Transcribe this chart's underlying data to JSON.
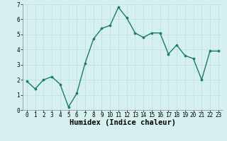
{
  "xlabel": "Humidex (Indice chaleur)",
  "x": [
    0,
    1,
    2,
    3,
    4,
    5,
    6,
    7,
    8,
    9,
    10,
    11,
    12,
    13,
    14,
    15,
    16,
    17,
    18,
    19,
    20,
    21,
    22,
    23
  ],
  "y": [
    1.9,
    1.4,
    2.0,
    2.2,
    1.7,
    0.2,
    1.1,
    3.1,
    4.7,
    5.4,
    5.6,
    6.8,
    6.1,
    5.1,
    4.8,
    5.1,
    5.1,
    3.7,
    4.3,
    3.6,
    3.4,
    2.0,
    3.9,
    3.9
  ],
  "line_color": "#1a7a6e",
  "marker": "o",
  "markersize": 2.2,
  "linewidth": 1.0,
  "background_color": "#d6f0f0",
  "grid_color": "#c0dede",
  "ylim": [
    0,
    7
  ],
  "yticks": [
    0,
    1,
    2,
    3,
    4,
    5,
    6,
    7
  ],
  "xticks": [
    0,
    1,
    2,
    3,
    4,
    5,
    6,
    7,
    8,
    9,
    10,
    11,
    12,
    13,
    14,
    15,
    16,
    17,
    18,
    19,
    20,
    21,
    22,
    23
  ],
  "tick_label_fontsize": 5.5,
  "xlabel_fontsize": 7.5,
  "spine_color": "#888888"
}
